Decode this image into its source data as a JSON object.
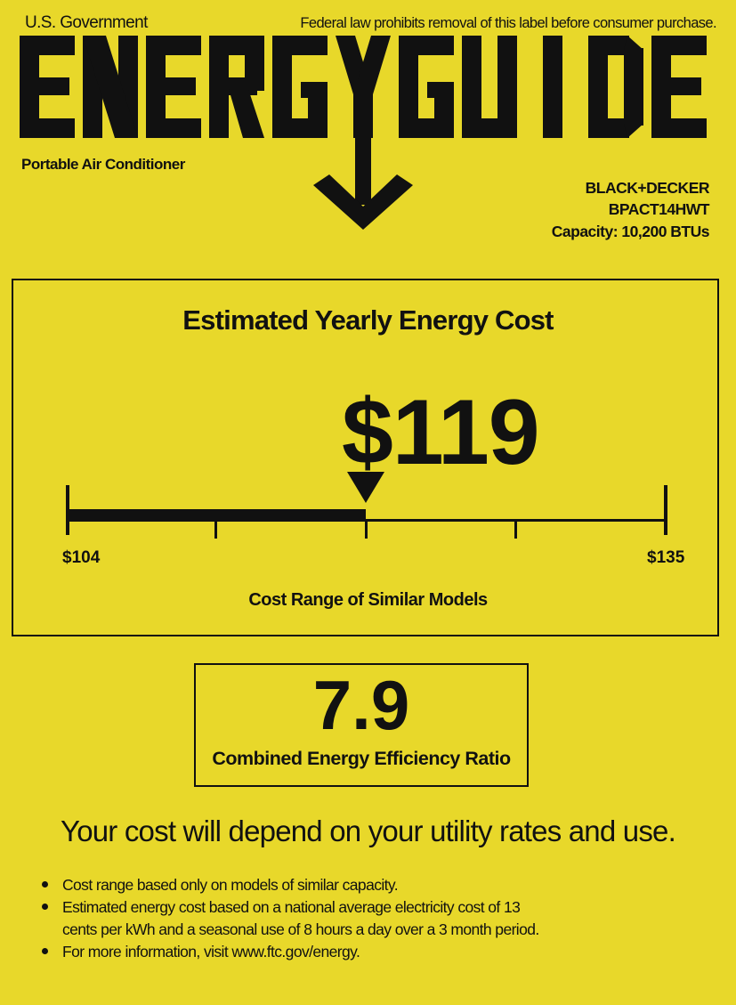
{
  "header": {
    "issuer": "U.S. Government",
    "legal_notice": "Federal law prohibits removal of this label before consumer purchase.",
    "logo_text": "ENERGYGUIDE",
    "product_type": "Portable Air Conditioner",
    "brand": "BLACK+DECKER",
    "model": "BPACT14HWT",
    "capacity": "Capacity: 10,200 BTUs"
  },
  "cost": {
    "title": "Estimated Yearly Energy Cost",
    "value_label": "$119",
    "value": 119,
    "range_min": 104,
    "range_max": 135,
    "range_min_label": "$104",
    "range_max_label": "$135",
    "range_caption": "Cost Range of Similar Models"
  },
  "efficiency": {
    "value": "7.9",
    "label": "Combined Energy Efficiency Ratio"
  },
  "notice": "Your cost will depend on your utility rates and use.",
  "bullets": [
    "Cost range based only on models of similar capacity.",
    "Estimated energy cost based on a national average electricity cost of 13",
    "cents per kWh and a seasonal use of 8 hours a day over a 3 month period.",
    "For more information, visit www.ftc.gov/energy."
  ],
  "colors": {
    "background": "#e8d82a",
    "ink": "#111111"
  }
}
